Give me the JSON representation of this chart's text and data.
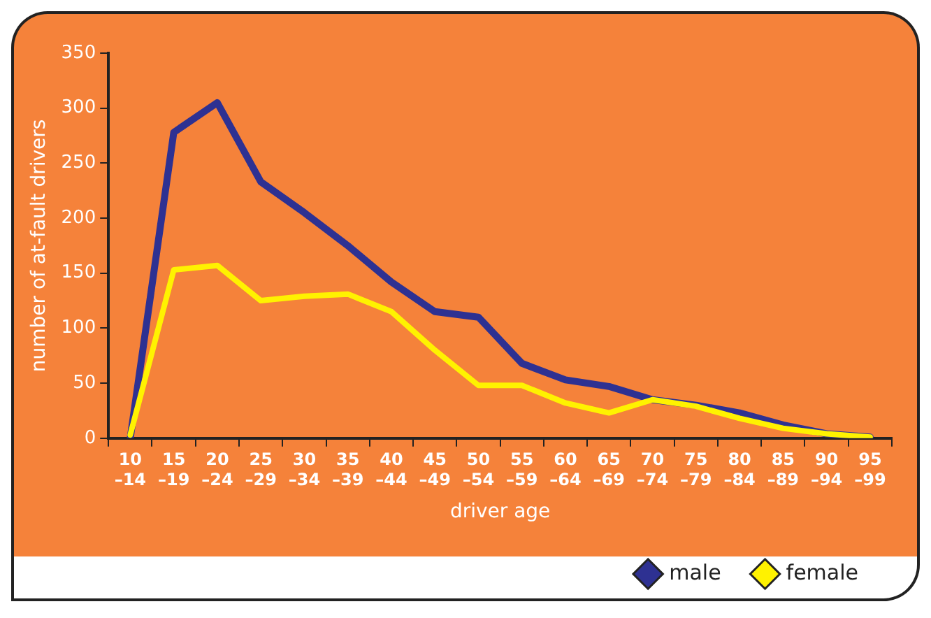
{
  "chart_data": {
    "type": "line",
    "xlabel": "driver age",
    "ylabel": "number of at-fault drivers",
    "categories": [
      "10\n–14",
      "15\n–19",
      "20\n–24",
      "25\n–29",
      "30\n–34",
      "35\n–39",
      "40\n–44",
      "45\n–49",
      "50\n–54",
      "55\n–59",
      "60\n–64",
      "65\n–69",
      "70\n–74",
      "75\n–79",
      "80\n–84",
      "85\n–89",
      "90\n–94",
      "95\n–99"
    ],
    "series": [
      {
        "name": "male",
        "color": "#2e3192",
        "values": [
          0,
          278,
          305,
          233,
          205,
          175,
          142,
          115,
          110,
          68,
          53,
          47,
          35,
          30,
          23,
          12,
          4,
          1
        ]
      },
      {
        "name": "female",
        "color": "#fff200",
        "values": [
          3,
          153,
          157,
          125,
          129,
          131,
          115,
          80,
          48,
          48,
          32,
          23,
          35,
          29,
          18,
          9,
          4,
          1
        ]
      }
    ],
    "ylim": [
      0,
      350
    ],
    "yticks": [
      0,
      50,
      100,
      150,
      200,
      250,
      300,
      350
    ],
    "grid": false,
    "legend": "bottom right",
    "marker": "none",
    "line_style": "solid"
  }
}
